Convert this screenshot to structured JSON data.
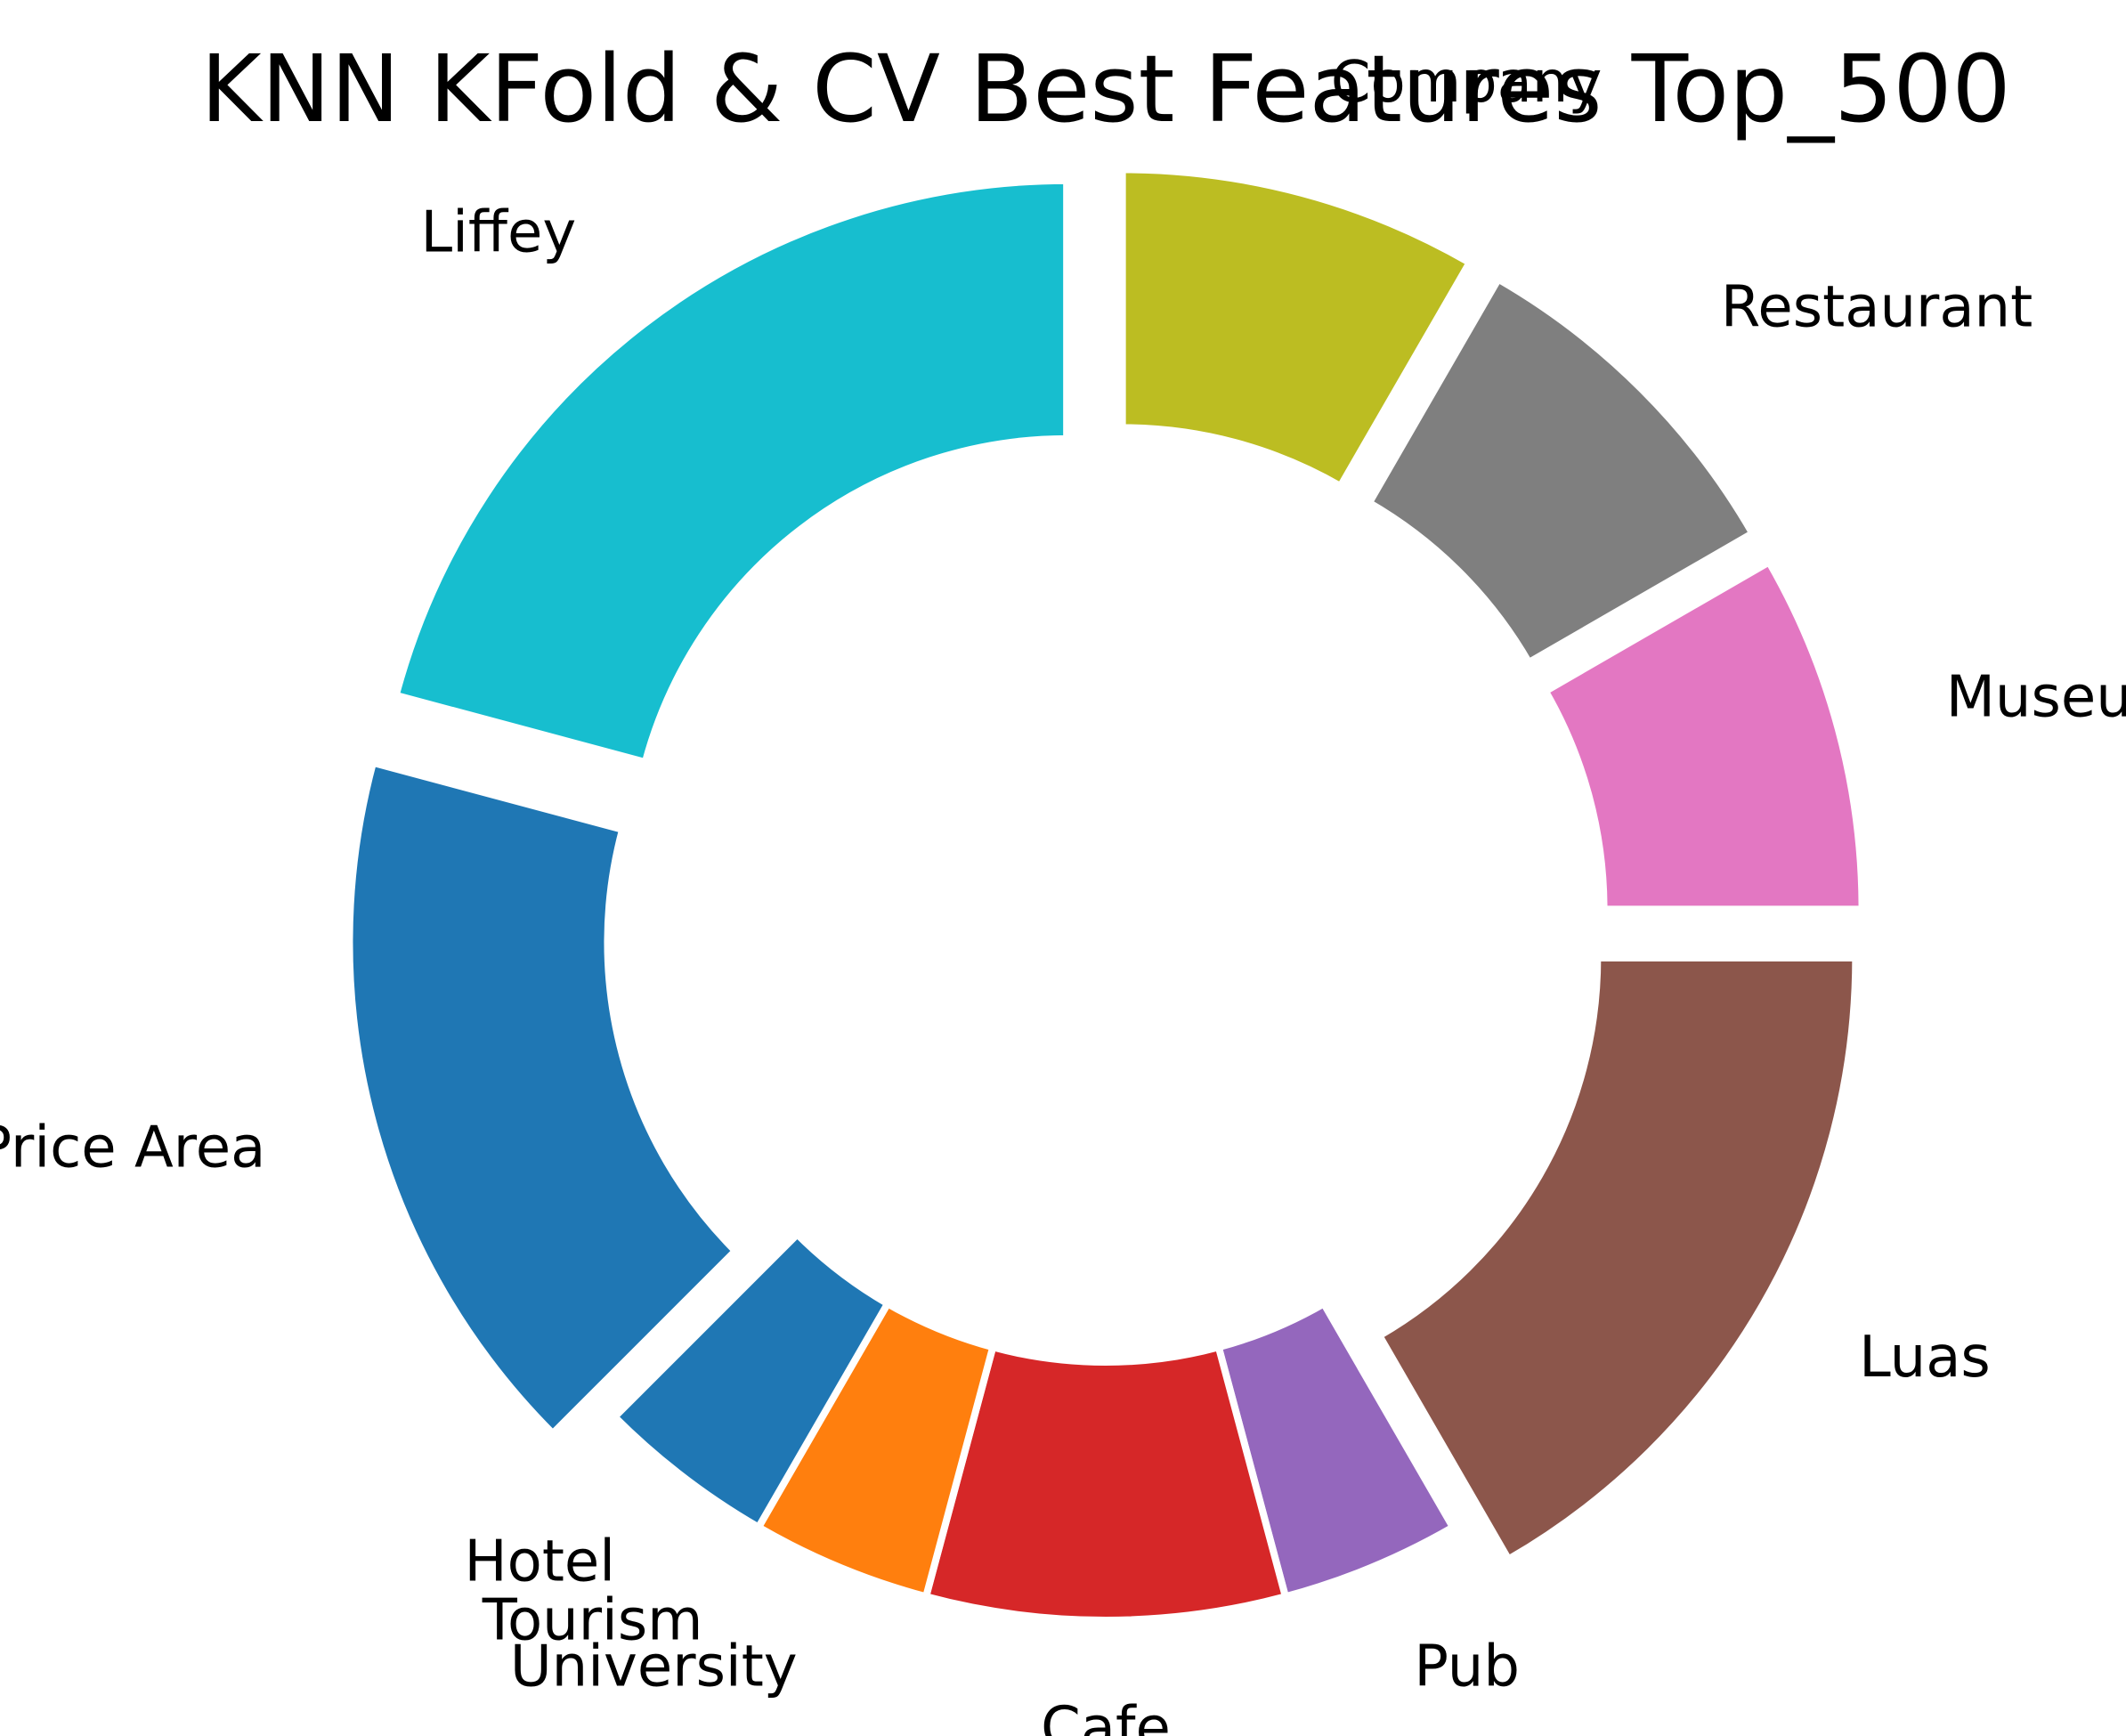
{
  "chart_data": {
    "type": "pie",
    "variant": "donut",
    "title": "KNN KFold & CV Best Features Top_500",
    "slices": [
      {
        "label": "Company",
        "value": 30,
        "color": "#bcbd22",
        "exploded": true
      },
      {
        "label": "Restaurant",
        "value": 30,
        "color": "#7f7f7f",
        "exploded": true
      },
      {
        "label": "Museum",
        "value": 30,
        "color": "#e377c2",
        "exploded": true
      },
      {
        "label": "Luas",
        "value": 60,
        "color": "#8c564b",
        "exploded": true
      },
      {
        "label": "Pub",
        "value": 15,
        "color": "#9467bd",
        "exploded": false
      },
      {
        "label": "Cafe",
        "value": 30,
        "color": "#d62728",
        "exploded": false
      },
      {
        "label": "University",
        "value": 15,
        "color": "#ff7f0e",
        "exploded": false
      },
      {
        "label": "Tourism",
        "value": 0,
        "color": "#2ca02c",
        "exploded": false
      },
      {
        "label": "Hotel",
        "value": 15,
        "color": "#1f77b4",
        "exploded": false
      },
      {
        "label": "Price Area",
        "value": 60,
        "color": "#1f77b4",
        "exploded": true
      },
      {
        "label": "Liffey",
        "value": 75,
        "color": "#17becf",
        "exploded": true
      }
    ],
    "start_angle_deg": 90,
    "direction": "clockwise",
    "legend": "none"
  }
}
